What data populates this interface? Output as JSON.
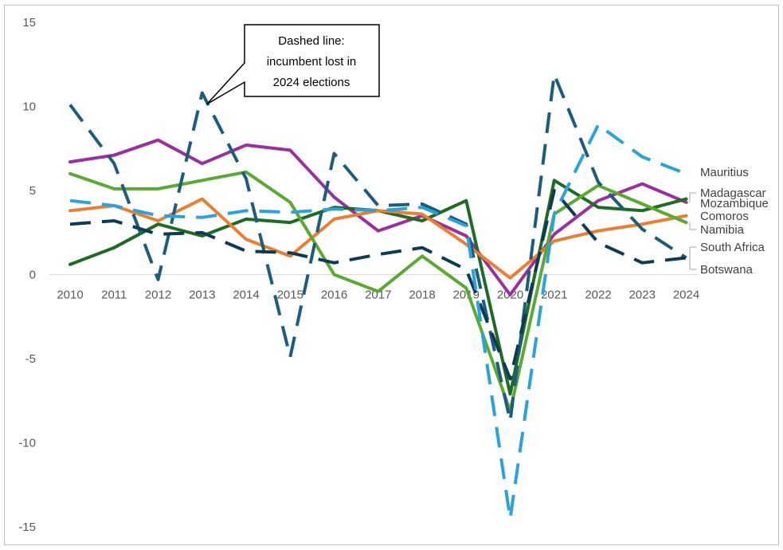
{
  "chart_data": {
    "type": "line",
    "title": "",
    "xlabel": "",
    "ylabel": "",
    "ylim": [
      -15,
      15
    ],
    "yticks": [
      15,
      10,
      5,
      0,
      -5,
      -10,
      -15
    ],
    "grid": false,
    "legend": "direct labels at right end of lines",
    "categories": [
      "2010",
      "2011",
      "2012",
      "2013",
      "2014",
      "2015",
      "2016",
      "2017",
      "2018",
      "2019",
      "2020",
      "2021",
      "2022",
      "2023",
      "2024"
    ],
    "annotation": {
      "lines": [
        "Dashed line:",
        "incumbent lost in",
        "2024 elections"
      ],
      "points_to": "Botswana 2013"
    },
    "series": [
      {
        "name": "Botswana",
        "color": "#1a5d7e",
        "dashed": true,
        "values": [
          10.1,
          6.6,
          -0.3,
          10.8,
          5.7,
          -4.9,
          7.2,
          4.1,
          4.2,
          3.0,
          -8.7,
          11.9,
          5.5,
          2.7,
          1.0
        ]
      },
      {
        "name": "South Africa",
        "color": "#0d3b56",
        "dashed": true,
        "values": [
          3.0,
          3.2,
          2.4,
          2.5,
          1.4,
          1.3,
          0.7,
          1.2,
          1.6,
          0.3,
          -6.2,
          5.0,
          1.9,
          0.7,
          1.0
        ]
      },
      {
        "name": "Mauritius",
        "color": "#29a3dc",
        "dashed": true,
        "values": [
          4.4,
          4.1,
          3.5,
          3.4,
          3.8,
          3.7,
          3.9,
          3.8,
          4.0,
          2.9,
          -14.5,
          3.6,
          8.9,
          7.0,
          6.0
        ]
      },
      {
        "name": "Madagascar",
        "color": "#9b2f9e",
        "dashed": false,
        "values": [
          6.7,
          7.1,
          8.0,
          6.6,
          7.7,
          7.4,
          4.6,
          2.6,
          3.5,
          2.3,
          -1.2,
          2.4,
          4.4,
          5.4,
          4.3
        ]
      },
      {
        "name": "Mozambique",
        "color": "#1e6b24",
        "dashed": false,
        "values": [
          0.6,
          1.6,
          3.0,
          2.3,
          3.3,
          3.1,
          4.0,
          3.8,
          3.2,
          4.4,
          -7.1,
          5.6,
          4.0,
          3.8,
          4.5
        ]
      },
      {
        "name": "Comoros",
        "color": "#ed7d31",
        "dashed": false,
        "values": [
          3.8,
          4.1,
          3.2,
          4.5,
          2.1,
          1.1,
          3.3,
          3.8,
          3.6,
          1.8,
          -0.2,
          2.0,
          2.6,
          3.0,
          3.5
        ]
      },
      {
        "name": "Namibia",
        "color": "#5aaa32",
        "dashed": false,
        "values": [
          6.0,
          5.1,
          5.1,
          5.6,
          6.1,
          4.3,
          0.0,
          -1.0,
          1.1,
          -0.8,
          -8.1,
          3.6,
          5.3,
          4.2,
          3.1
        ]
      }
    ]
  }
}
